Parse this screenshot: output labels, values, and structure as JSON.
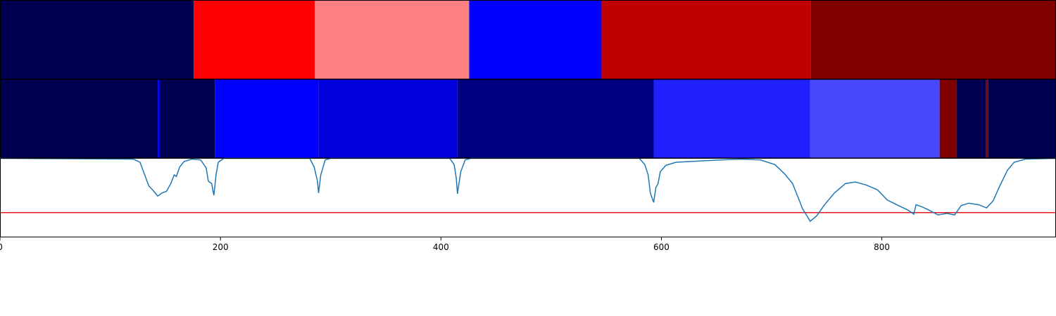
{
  "chart_data": [
    {
      "type": "segments",
      "xlim": [
        0,
        958
      ],
      "segments": [
        {
          "start": 0,
          "end": 175.7,
          "color": "#000050"
        },
        {
          "start": 175.7,
          "end": 285.6,
          "color": "#ff0000"
        },
        {
          "start": 285.6,
          "end": 425.6,
          "color": "#ff8080"
        },
        {
          "start": 425.6,
          "end": 545.7,
          "color": "#0000ff"
        },
        {
          "start": 545.7,
          "end": 735.5,
          "color": "#c00000"
        },
        {
          "start": 735.5,
          "end": 958,
          "color": "#800000"
        }
      ]
    },
    {
      "type": "segments",
      "xlim": [
        0,
        958
      ],
      "segments": [
        {
          "start": 0,
          "end": 143.1,
          "color": "#000050"
        },
        {
          "start": 143.1,
          "end": 145,
          "color": "#0000e0"
        },
        {
          "start": 145,
          "end": 194.9,
          "color": "#000050"
        },
        {
          "start": 194.9,
          "end": 288.8,
          "color": "#0000ff"
        },
        {
          "start": 288.8,
          "end": 414.7,
          "color": "#0000dd"
        },
        {
          "start": 414.7,
          "end": 593,
          "color": "#000080"
        },
        {
          "start": 593,
          "end": 734.8,
          "color": "#2020ff"
        },
        {
          "start": 734.8,
          "end": 852.4,
          "color": "#4848ff"
        },
        {
          "start": 852.4,
          "end": 867.7,
          "color": "#800000"
        },
        {
          "start": 867.7,
          "end": 894.6,
          "color": "#000050"
        },
        {
          "start": 894.6,
          "end": 896.5,
          "color": "#800000"
        },
        {
          "start": 896.5,
          "end": 958,
          "color": "#000050"
        }
      ]
    },
    {
      "type": "line",
      "xlim": [
        0,
        958
      ],
      "ylim": [
        0,
        1
      ],
      "xticks": [
        0,
        200,
        400,
        600,
        800
      ],
      "color": "#1f77b4",
      "threshold": 0.31,
      "threshold_color": "#e41a1c",
      "x": [
        0,
        121,
        127,
        131,
        135,
        139,
        143,
        147,
        151,
        155,
        158,
        160,
        163,
        167,
        174,
        182,
        187,
        189,
        192,
        194,
        196,
        198,
        203,
        281,
        285,
        288,
        289,
        291,
        295,
        300,
        408,
        412,
        414,
        415,
        418,
        422,
        427,
        580,
        585,
        588,
        590,
        593,
        595,
        597,
        599,
        604,
        613,
        639,
        671,
        690,
        703,
        712,
        719,
        725,
        728,
        732,
        735,
        741,
        748,
        757,
        767,
        776,
        786,
        796,
        805,
        815,
        824,
        829,
        831,
        837,
        843,
        851,
        859,
        866,
        872,
        879,
        888,
        895,
        901,
        907,
        914,
        920,
        930,
        958
      ],
      "values": [
        1.0,
        0.99,
        0.95,
        0.8,
        0.65,
        0.59,
        0.52,
        0.56,
        0.58,
        0.68,
        0.79,
        0.77,
        0.89,
        0.96,
        0.99,
        0.98,
        0.88,
        0.71,
        0.68,
        0.53,
        0.79,
        0.95,
        1.0,
        1.0,
        0.89,
        0.71,
        0.56,
        0.79,
        0.98,
        1.0,
        1.0,
        0.92,
        0.74,
        0.55,
        0.83,
        0.98,
        1.0,
        1.0,
        0.92,
        0.79,
        0.56,
        0.44,
        0.63,
        0.68,
        0.83,
        0.91,
        0.95,
        0.97,
        0.99,
        0.98,
        0.92,
        0.8,
        0.68,
        0.47,
        0.36,
        0.27,
        0.2,
        0.27,
        0.41,
        0.56,
        0.68,
        0.7,
        0.66,
        0.6,
        0.47,
        0.4,
        0.34,
        0.29,
        0.41,
        0.38,
        0.34,
        0.28,
        0.3,
        0.28,
        0.4,
        0.43,
        0.41,
        0.37,
        0.46,
        0.65,
        0.85,
        0.95,
        0.99,
        1.0
      ]
    }
  ]
}
